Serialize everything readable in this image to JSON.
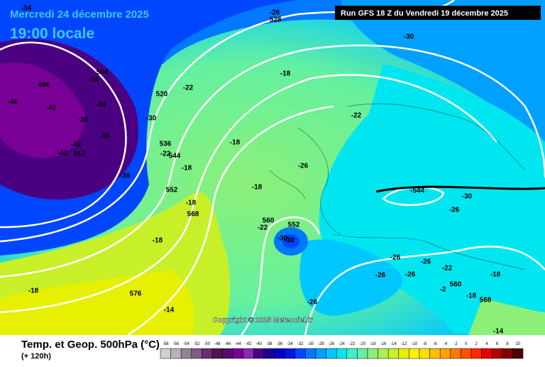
{
  "header": {
    "date": "Mercredi 24 décembre 2025",
    "time": "19:00 locale",
    "run": "Run GFS 18 Z du Vendredi 19 décembre 2025"
  },
  "copyright": "Copyright © 2025 Meteociel.fr",
  "footer": {
    "title": "Temp. et Geop. 500hPa (°C)",
    "lead": "(+ 120h)"
  },
  "scale": {
    "labels": [
      -58,
      -56,
      -54,
      -52,
      -50,
      -48,
      -46,
      -44,
      -42,
      -40,
      -38,
      -36,
      -34,
      -32,
      -30,
      -28,
      -26,
      -24,
      -22,
      -20,
      -18,
      -16,
      -14,
      -12,
      -10,
      -8,
      -6,
      -4,
      -2,
      0,
      2,
      4,
      6,
      8,
      10
    ],
    "colors": [
      "#d0d0d0",
      "#b4b4b4",
      "#968296",
      "#825a82",
      "#6e2d6e",
      "#501450",
      "#5a0a6e",
      "#780096",
      "#8c28b4",
      "#4b0082",
      "#1e0096",
      "#0000c8",
      "#0014e6",
      "#0046ff",
      "#0078ff",
      "#00a0ff",
      "#00c8ff",
      "#00e6f0",
      "#3cf0c8",
      "#64f0a0",
      "#8cf078",
      "#aaf050",
      "#c8f028",
      "#e6f000",
      "#fff000",
      "#ffdc00",
      "#ffbe00",
      "#ffa000",
      "#ff7800",
      "#ff5000",
      "#ff2800",
      "#e60000",
      "#b40000",
      "#820000",
      "#500000"
    ]
  },
  "map_labels": [
    "-34",
    "-26",
    "528",
    "-30",
    "496",
    "-34",
    "504",
    "-46",
    "-42",
    "-34",
    "-38",
    "-38",
    "-42",
    "-42",
    "512",
    "-38",
    "520",
    "-22",
    "-18",
    "-30",
    "536",
    "-22",
    "544",
    "-18",
    "-18",
    "-22",
    "-26",
    "552",
    "-18",
    "-544",
    "-30",
    "-18",
    "-26",
    "568",
    "560",
    "-22",
    "552",
    "-30",
    "-30",
    "-18",
    "-26",
    "-26",
    "-22",
    "-26",
    "-26",
    "-18",
    "560",
    "-2",
    "-18",
    "576",
    "-18",
    "568",
    "-26",
    "-14",
    "-14"
  ]
}
